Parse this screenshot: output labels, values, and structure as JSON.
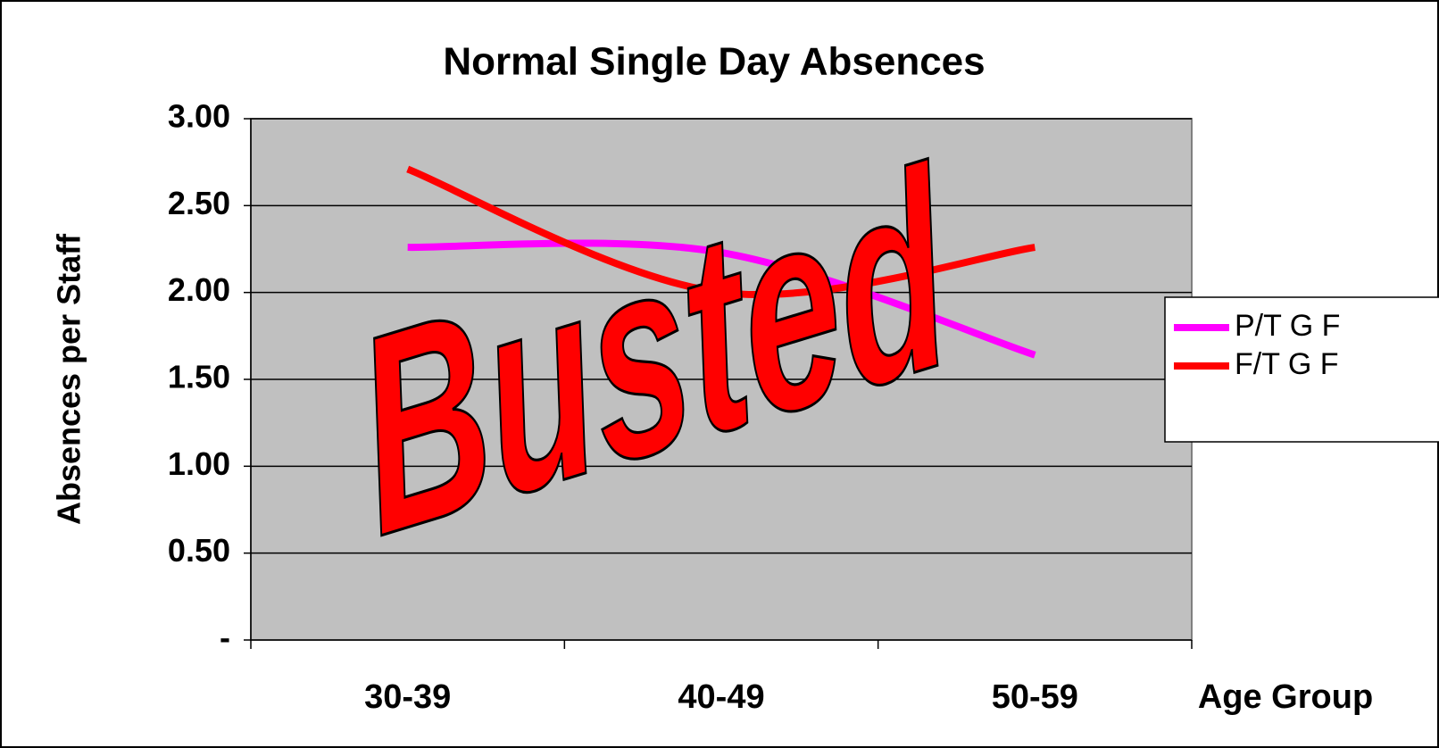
{
  "chart_data": {
    "type": "line",
    "title": "Normal Single Day Absences",
    "y_label": "Absences per Staff",
    "x_label": "Age Group",
    "annotation": "Busted",
    "categories": [
      "30-39",
      "40-49",
      "50-59"
    ],
    "series": [
      {
        "name": "P/T G F",
        "color": "#ff00ff",
        "values": [
          2.26,
          2.23,
          1.64
        ]
      },
      {
        "name": "F/T G F",
        "color": "#ff0000",
        "values": [
          2.71,
          2.0,
          2.26
        ]
      }
    ],
    "ylim": [
      0,
      3
    ],
    "yticks": [
      {
        "value": 0,
        "label": "-"
      },
      {
        "value": 0.5,
        "label": "0.50"
      },
      {
        "value": 1,
        "label": "1.00"
      },
      {
        "value": 1.5,
        "label": "1.50"
      },
      {
        "value": 2,
        "label": "2.00"
      },
      {
        "value": 2.5,
        "label": "2.50"
      },
      {
        "value": 3,
        "label": "3.00"
      }
    ],
    "grid": true,
    "legend": "right",
    "plot_background": "#c0c0c0"
  }
}
